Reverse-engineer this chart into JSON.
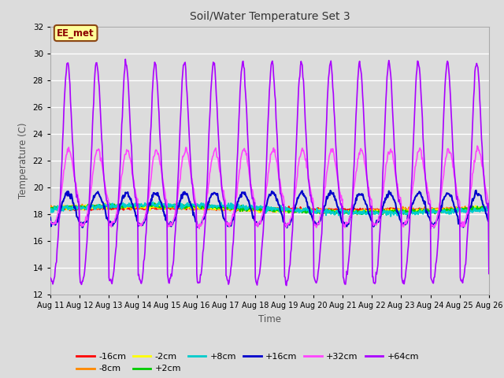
{
  "title": "Soil/Water Temperature Set 3",
  "xlabel": "Time",
  "ylabel": "Temperature (C)",
  "ylim": [
    12,
    32
  ],
  "yticks": [
    12,
    14,
    16,
    18,
    20,
    22,
    24,
    26,
    28,
    30,
    32
  ],
  "x_tick_labels": [
    "Aug 11",
    "Aug 12",
    "Aug 13",
    "Aug 14",
    "Aug 15",
    "Aug 16",
    "Aug 17",
    "Aug 18",
    "Aug 19",
    "Aug 20",
    "Aug 21",
    "Aug 22",
    "Aug 23",
    "Aug 24",
    "Aug 25",
    "Aug 26"
  ],
  "annotation_text": "EE_met",
  "annotation_bg": "#ffff99",
  "annotation_border": "#8b4513",
  "series_colors": {
    "-16cm": "#ff0000",
    "-8cm": "#ff8800",
    "-2cm": "#ffff00",
    "+2cm": "#00cc00",
    "+8cm": "#00cccc",
    "+16cm": "#0000cc",
    "+32cm": "#ff44ff",
    "+64cm": "#aa00ff"
  },
  "plot_bg": "#dcdcdc",
  "grid_color": "#ffffff",
  "fig_bg": "#dcdcdc",
  "n_points_per_day": 48,
  "n_days": 15,
  "base_temp": 18.4
}
